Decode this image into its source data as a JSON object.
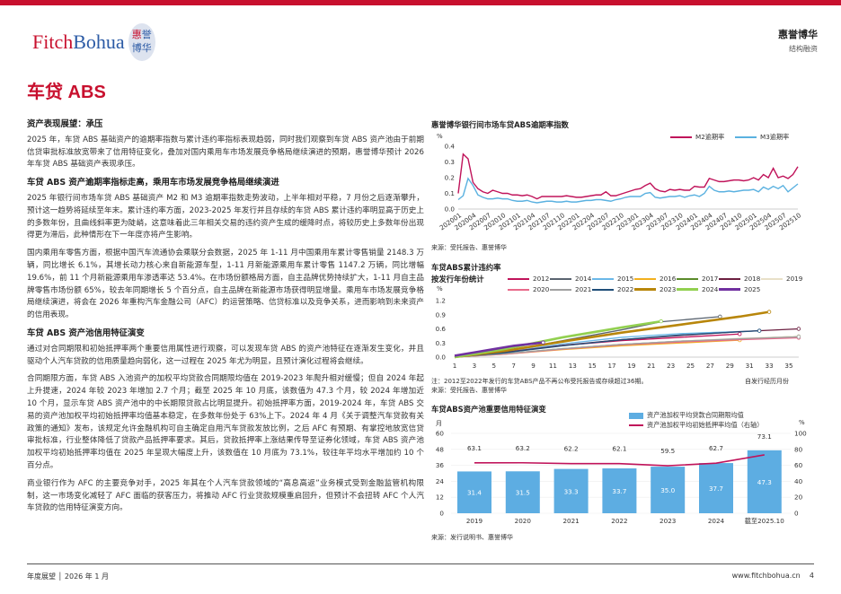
{
  "header": {
    "logo_text": "FitchBohua",
    "logo_seal": "惠誉博华",
    "brand": "惠誉博华",
    "division": "结构融资"
  },
  "page_title": "车贷 ABS",
  "body": {
    "h1": "资产表现展望：承压",
    "p1": "2025 年，车贷 ABS 基础资产的逾期率指数与累计违约率指标表现趋弱，同时我们观察到车贷 ABS 资产池由于前期信贷审批标准放宽带来了信用特征变化，叠加对国内乘用车市场发展竞争格局继续演进的预期，惠誉博华预计 2026 年车贷 ABS 基础资产表现承压。",
    "h2": "车贷 ABS 资产逾期率指标走高，乘用车市场发展竞争格局继续演进",
    "p2": "2025 年银行间市场车贷 ABS 基础资产 M2 和 M3 逾期率指数走势波动，上半年相对平稳，7 月份之后逐渐攀升，预计这一趋势将延续至年末。累计违约率方面，2023-2025 年发行并且存续的车贷 ABS 累计违约率明显高于历史上的多数年份，且曲线斜率更为陡峭，这意味着此三年相关交易的违约资产生成的缓降时点，将较历史上多数年份出现得更为滞后，此种情形在下一年度亦将产生影响。",
    "p3": "国内乘用车零售方面，根据中国汽车流通协会乘联分会数据，2025 年 1-11 月中国乘用车累计零售销量 2148.3 万辆，同比增长 6.1%，其增长动力核心来自新能源车型，1-11 月新能源乘用车累计零售 1147.2 万辆，同比增幅 19.6%，前 11 个月新能源乘用车渗透率达 53.4%。在市场份额格局方面，自主品牌优势持续扩大，1-11 月自主品牌零售市场份额 65%，较去年同期增长 5 个百分点，自主品牌在新能源市场获得明显增量。乘用车市场发展竞争格局继续演进，将会在 2026 年重构汽车金融公司（AFC）的运营策略、信贷标准以及竞争关系，进而影响到未来资产的信用表现。",
    "h3": "车贷 ABS 资产池信用特征演变",
    "p4": "通过对合同期限和初始抵押率两个重要信用属性进行观察，可以发现车贷 ABS 的资产池特征在逐渐发生变化，并且驱动个人汽车贷款的信用质量趋向弱化，这一过程在 2025 年尤为明显，且预计演化过程将会继续。",
    "p5": "合同期限方面，车贷 ABS 入池资产的加权平均贷款合同期限均值在 2019-2023 年爬升相对缓慢；但自 2024 年起上升提速，2024 年较 2023 年增加 2.7 个月；截至 2025 年 10 月底，该数值为 47.3 个月，较 2024 年增加近 10 个月，显示车贷 ABS 资产池中的中长期限贷款占比明显提升。初始抵押率方面，2019-2024 年，车贷 ABS 交易的资产池加权平均初始抵押率均值基本稳定，在多数年份处于 63%上下。2024 年 4 月《关于调整汽车贷款有关政策的通知》发布，该规定允许金融机构可自主确定自用汽车贷款发放比例，之后 AFC 有预期、有掌控地放宽信贷审批标准，行业整体降低了贷款产品抵押率要求。其后，贷款抵押率上涨结果传导至证券化领域，车贷 ABS 资产池加权平均初始抵押率均值在 2025 年呈现大幅度上升，该数值在 10 月底为 73.1%，较往年平均水平增加约 10 个百分点。",
    "p6": "商业银行作为 AFC 的主要竞争对手，2025 年其在个人汽车贷款领域的“高息高返”业务模式受到金融监管机构限制，这一市场变化减轻了 AFC 面临的获客压力，将推动 AFC 行业贷款规模重启回升，但预计不会扭转 AFC 个人汽车贷款的信用特征演变方向。"
  },
  "footer": {
    "left": "年度展望 │ 2026 年 1 月",
    "url": "www.fitchbohua.cn",
    "page": "4"
  },
  "chart_data": [
    {
      "type": "line",
      "title": "惠誉博华银行间市场车贷ABS逾期率指数",
      "ylabel": "%",
      "ylim": [
        0,
        0.4
      ],
      "yticks": [
        "0.0",
        "0.1",
        "0.2",
        "0.3",
        "0.4"
      ],
      "xticks": [
        "202001",
        "202004",
        "202007",
        "202010",
        "202101",
        "202104",
        "202107",
        "202110",
        "202201",
        "202204",
        "202207",
        "202210",
        "202301",
        "202304",
        "202307",
        "202310",
        "202401",
        "202404",
        "202407",
        "202410",
        "202501",
        "202504",
        "202507",
        "202510"
      ],
      "series": [
        {
          "name": "M2逾期率",
          "color": "#c0135a",
          "values": [
            0.1,
            0.35,
            0.32,
            0.17,
            0.13,
            0.11,
            0.1,
            0.12,
            0.11,
            0.1,
            0.1,
            0.09,
            0.09,
            0.085,
            0.09,
            0.08,
            0.065,
            0.08,
            0.08,
            0.08,
            0.08,
            0.08,
            0.085,
            0.08,
            0.075,
            0.075,
            0.08,
            0.085,
            0.09,
            0.09,
            0.11,
            0.085,
            0.085,
            0.095,
            0.105,
            0.115,
            0.125,
            0.13,
            0.15,
            0.165,
            0.13,
            0.115,
            0.11,
            0.125,
            0.12,
            0.125,
            0.12,
            0.12,
            0.145,
            0.14,
            0.14,
            0.195,
            0.185,
            0.175,
            0.175,
            0.18,
            0.185,
            0.185,
            0.18,
            0.185,
            0.2,
            0.185,
            0.22,
            0.2,
            0.26,
            0.2,
            0.21,
            0.195,
            0.22,
            0.27
          ]
        },
        {
          "name": "M3逾期率",
          "color": "#5ab1e0",
          "values": [
            0.06,
            0.085,
            0.195,
            0.15,
            0.09,
            0.075,
            0.065,
            0.065,
            0.07,
            0.065,
            0.065,
            0.055,
            0.05,
            0.05,
            0.055,
            0.045,
            0.04,
            0.045,
            0.05,
            0.05,
            0.045,
            0.045,
            0.05,
            0.045,
            0.045,
            0.05,
            0.055,
            0.055,
            0.06,
            0.06,
            0.055,
            0.05,
            0.06,
            0.065,
            0.075,
            0.08,
            0.08,
            0.08,
            0.1,
            0.105,
            0.075,
            0.07,
            0.075,
            0.08,
            0.08,
            0.085,
            0.075,
            0.085,
            0.09,
            0.08,
            0.1,
            0.145,
            0.12,
            0.11,
            0.11,
            0.115,
            0.11,
            0.115,
            0.12,
            0.12,
            0.125,
            0.11,
            0.14,
            0.125,
            0.145,
            0.13,
            0.15,
            0.11,
            0.135,
            0.16
          ]
        }
      ],
      "source": "来源：受托报告、惠誉博华"
    },
    {
      "type": "line",
      "title": "车贷ABS累计违约率",
      "subtitle": "按发行年份统计",
      "ylabel": "%",
      "ylim": [
        0,
        1.2
      ],
      "yticks": [
        "0.0",
        "0.3",
        "0.6",
        "0.9",
        "1.2"
      ],
      "xticks": [
        "1",
        "3",
        "5",
        "7",
        "9",
        "11",
        "13",
        "15",
        "17",
        "19",
        "21",
        "23",
        "25",
        "27",
        "29",
        "31",
        "33",
        "35"
      ],
      "xlabel": "自发行经历月份",
      "series": [
        {
          "name": "2012",
          "color": "#c0135a",
          "months": [
            1,
            6,
            12,
            18,
            24,
            30
          ],
          "values": [
            0,
            0.1,
            0.25,
            0.35,
            0.42,
            0.49
          ]
        },
        {
          "name": "2014",
          "color": "#5a6470",
          "months": [
            1,
            6,
            12,
            18,
            22,
            28
          ],
          "values": [
            0,
            0.12,
            0.35,
            0.58,
            0.75,
            0.86
          ]
        },
        {
          "name": "2015",
          "color": "#6ab8e8",
          "months": [
            1,
            6,
            12,
            18,
            24,
            32
          ],
          "values": [
            0,
            0.1,
            0.28,
            0.42,
            0.5,
            0.56
          ]
        },
        {
          "name": "2016",
          "color": "#f2b01e",
          "months": [
            1,
            6,
            12,
            18,
            24,
            30
          ],
          "values": [
            0,
            0.06,
            0.16,
            0.24,
            0.3,
            0.36
          ]
        },
        {
          "name": "2017",
          "color": "#5a8a2a",
          "months": [
            1,
            6,
            12,
            18,
            24,
            30,
            36
          ],
          "values": [
            0,
            0.07,
            0.18,
            0.27,
            0.34,
            0.39,
            0.44
          ]
        },
        {
          "name": "2018",
          "color": "#6b1f40",
          "months": [
            1,
            6,
            12,
            18,
            24,
            30,
            36
          ],
          "values": [
            0,
            0.1,
            0.25,
            0.37,
            0.46,
            0.54,
            0.6
          ]
        },
        {
          "name": "2019",
          "color": "#e8e0c8",
          "months": [
            1,
            6,
            12,
            18,
            24,
            30,
            36
          ],
          "values": [
            0,
            0.07,
            0.18,
            0.27,
            0.34,
            0.4,
            0.44
          ]
        },
        {
          "name": "2020",
          "color": "#e86a8a",
          "months": [
            1,
            6,
            12,
            18,
            24,
            30,
            36
          ],
          "values": [
            0,
            0.06,
            0.17,
            0.26,
            0.32,
            0.37,
            0.41
          ]
        },
        {
          "name": "2021",
          "color": "#a0a0a0",
          "months": [
            1,
            6,
            12,
            18,
            24,
            30,
            36
          ],
          "values": [
            0,
            0.07,
            0.18,
            0.27,
            0.34,
            0.39,
            0.43
          ]
        },
        {
          "name": "2022",
          "color": "#1f4e79",
          "months": [
            1,
            6,
            12,
            18,
            24,
            32
          ],
          "values": [
            0,
            0.09,
            0.24,
            0.37,
            0.47,
            0.56
          ]
        },
        {
          "name": "2023",
          "color": "#b8860b",
          "months": [
            1,
            6,
            12,
            18,
            24,
            30,
            33
          ],
          "values": [
            0,
            0.13,
            0.33,
            0.52,
            0.69,
            0.86,
            0.96
          ]
        },
        {
          "name": "2024",
          "color": "#92d050",
          "months": [
            1,
            6,
            12,
            18,
            22
          ],
          "values": [
            0,
            0.17,
            0.42,
            0.63,
            0.76
          ]
        },
        {
          "name": "2025",
          "color": "#7030a0",
          "months": [
            1,
            3,
            5,
            7,
            10
          ],
          "values": [
            0.03,
            0.1,
            0.17,
            0.24,
            0.31
          ]
        }
      ],
      "note": "注：2012至2022年发行的车贷ABS产品不再公布受托报告或存续超过36期。",
      "source": "来源：受托报告、惠誉博华"
    },
    {
      "type": "bar",
      "title": "车贷ABS资产池重要信用特征演变",
      "categories": [
        "2019",
        "2020",
        "2021",
        "2022",
        "2023",
        "2024",
        "截至2025.10"
      ],
      "ylabel_left": "月",
      "ylabel_right": "%",
      "ylim_left": [
        0,
        60
      ],
      "ylim_right": [
        0,
        100
      ],
      "yticks_left": [
        "0",
        "12",
        "24",
        "36",
        "48",
        "60"
      ],
      "yticks_right": [
        "0",
        "20",
        "40",
        "60",
        "80",
        "100"
      ],
      "series": [
        {
          "name": "资产池加权平均贷款合同期限均值",
          "color": "#5dade2",
          "values": [
            31.4,
            31.5,
            33.3,
            33.7,
            35.0,
            37.7,
            47.3
          ],
          "labels": [
            "31.4",
            "31.5",
            "33.3",
            "33.7",
            "35.0",
            "37.7",
            "47.3"
          ]
        },
        {
          "name": "资产池加权平均初始抵押率均值（右轴）",
          "color": "#c0135a",
          "values": [
            63.1,
            63.2,
            62.2,
            62.1,
            59.5,
            62.7,
            73.1
          ],
          "labels": [
            "63.1",
            "63.2",
            "62.2",
            "62.1",
            "59.5",
            "62.7",
            "73.1"
          ]
        }
      ],
      "source": "来源：发行说明书、惠誉博华"
    }
  ]
}
